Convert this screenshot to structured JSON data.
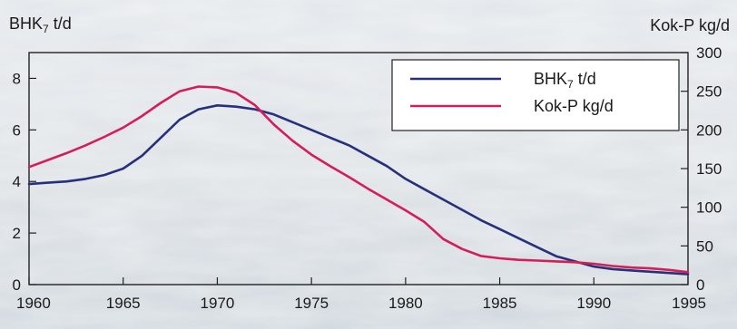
{
  "chart_data": {
    "type": "line",
    "title": "",
    "x": [
      1960,
      1961,
      1962,
      1963,
      1964,
      1965,
      1966,
      1967,
      1968,
      1969,
      1970,
      1971,
      1972,
      1973,
      1974,
      1975,
      1976,
      1977,
      1978,
      1979,
      1980,
      1981,
      1982,
      1983,
      1984,
      1985,
      1986,
      1987,
      1988,
      1989,
      1990,
      1991,
      1992,
      1993,
      1994,
      1995
    ],
    "xlim": [
      1960,
      1995
    ],
    "xticks": [
      "1960",
      "1965",
      "1970",
      "1975",
      "1980",
      "1985",
      "1990",
      "1995"
    ],
    "y_left": {
      "label": "BHK7 t/d",
      "label_main": "BHK",
      "label_sub": "7",
      "label_rest": " t/d",
      "lim": [
        0,
        9
      ],
      "ticks": [
        "0",
        "2",
        "4",
        "6",
        "8"
      ]
    },
    "y_right": {
      "label": "Kok-P kg/d",
      "lim": [
        0,
        300
      ],
      "ticks": [
        "0",
        "50",
        "100",
        "150",
        "200",
        "250",
        "300"
      ]
    },
    "legend": {
      "position": "top-right"
    },
    "series": [
      {
        "name": "BHK7 t/d",
        "legend_main": "BHK",
        "legend_sub": "7",
        "legend_rest": " t/d",
        "axis": "left",
        "color": "#27307a",
        "values": [
          3.9,
          3.95,
          4.0,
          4.1,
          4.25,
          4.5,
          5.0,
          5.7,
          6.4,
          6.8,
          6.95,
          6.9,
          6.8,
          6.6,
          6.3,
          6.0,
          5.7,
          5.4,
          5.0,
          4.6,
          4.1,
          3.7,
          3.3,
          2.9,
          2.5,
          2.15,
          1.8,
          1.45,
          1.1,
          0.9,
          0.7,
          0.6,
          0.55,
          0.5,
          0.45,
          0.4
        ]
      },
      {
        "name": "Kok-P kg/d",
        "axis": "right",
        "color": "#d41e5a",
        "values": [
          152,
          161,
          170,
          180,
          191,
          203,
          218,
          235,
          250,
          256,
          255,
          248,
          232,
          207,
          186,
          168,
          153,
          139,
          124,
          110,
          96,
          81,
          59,
          46,
          37,
          34,
          32,
          31,
          30,
          29,
          27,
          24,
          22,
          21,
          19,
          16
        ]
      }
    ]
  }
}
